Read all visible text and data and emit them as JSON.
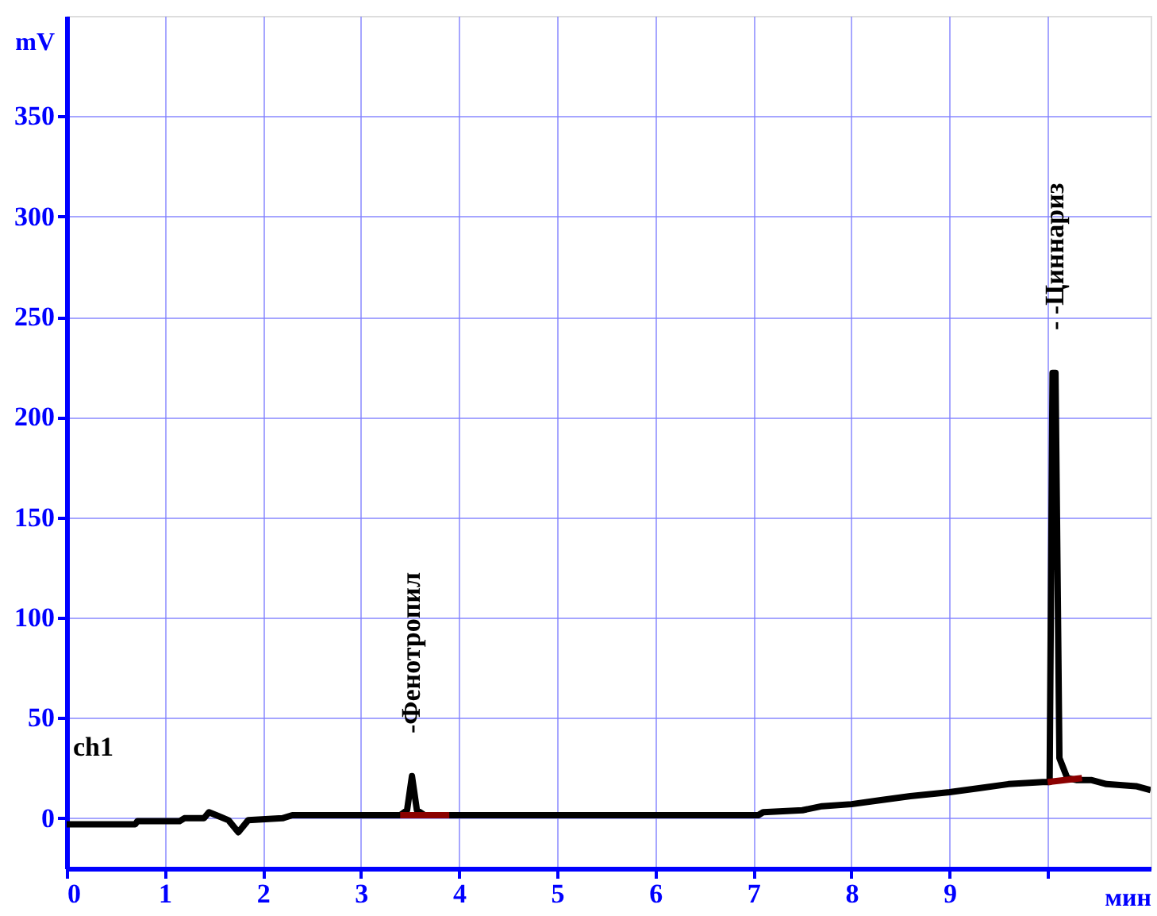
{
  "chart_data": {
    "type": "line",
    "xlabel": "мин",
    "ylabel": "mV",
    "xlim": [
      0,
      11.05
    ],
    "ylim": [
      -25,
      400
    ],
    "xticks": [
      0,
      1,
      2,
      3,
      4,
      5,
      6,
      7,
      8,
      9,
      {
        "value": 10,
        "label": null
      }
    ],
    "yticks": [
      0,
      50,
      100,
      150,
      200,
      250,
      300,
      350
    ],
    "grid": true,
    "series": [
      {
        "color": "#000000",
        "x": [
          0,
          0.7,
          0.72,
          1.15,
          1.2,
          1.4,
          1.45,
          1.55,
          1.65,
          1.75,
          1.85,
          2.2,
          2.3,
          3.4,
          3.47,
          3.52,
          3.57,
          3.65,
          7.05,
          7.1,
          7.5,
          7.7,
          8.0,
          8.3,
          8.6,
          9.0,
          9.3,
          9.6,
          9.95,
          10.02,
          10.05,
          10.08,
          10.12,
          10.2,
          10.3,
          10.45,
          10.6,
          10.9,
          11.05
        ],
        "values": [
          -3,
          -3,
          -1.5,
          -1.5,
          0,
          0,
          3,
          1,
          -1,
          -7,
          -1,
          0,
          1.5,
          1.5,
          4,
          21,
          4,
          1.5,
          1.5,
          3,
          4,
          6,
          7,
          9,
          11,
          13,
          15,
          17,
          18,
          18,
          222,
          222,
          30,
          20,
          19,
          19,
          17,
          16,
          14
        ]
      },
      {
        "color": "#8b0000",
        "x": [
          3.4,
          3.9
        ],
        "values": [
          1.5,
          1.5
        ]
      },
      {
        "color": "#8b0000",
        "x": [
          10.0,
          10.35
        ],
        "values": [
          18,
          20
        ]
      }
    ],
    "annotations": [
      "-Фенотропил",
      "- -Циннариз",
      "ch1"
    ]
  }
}
